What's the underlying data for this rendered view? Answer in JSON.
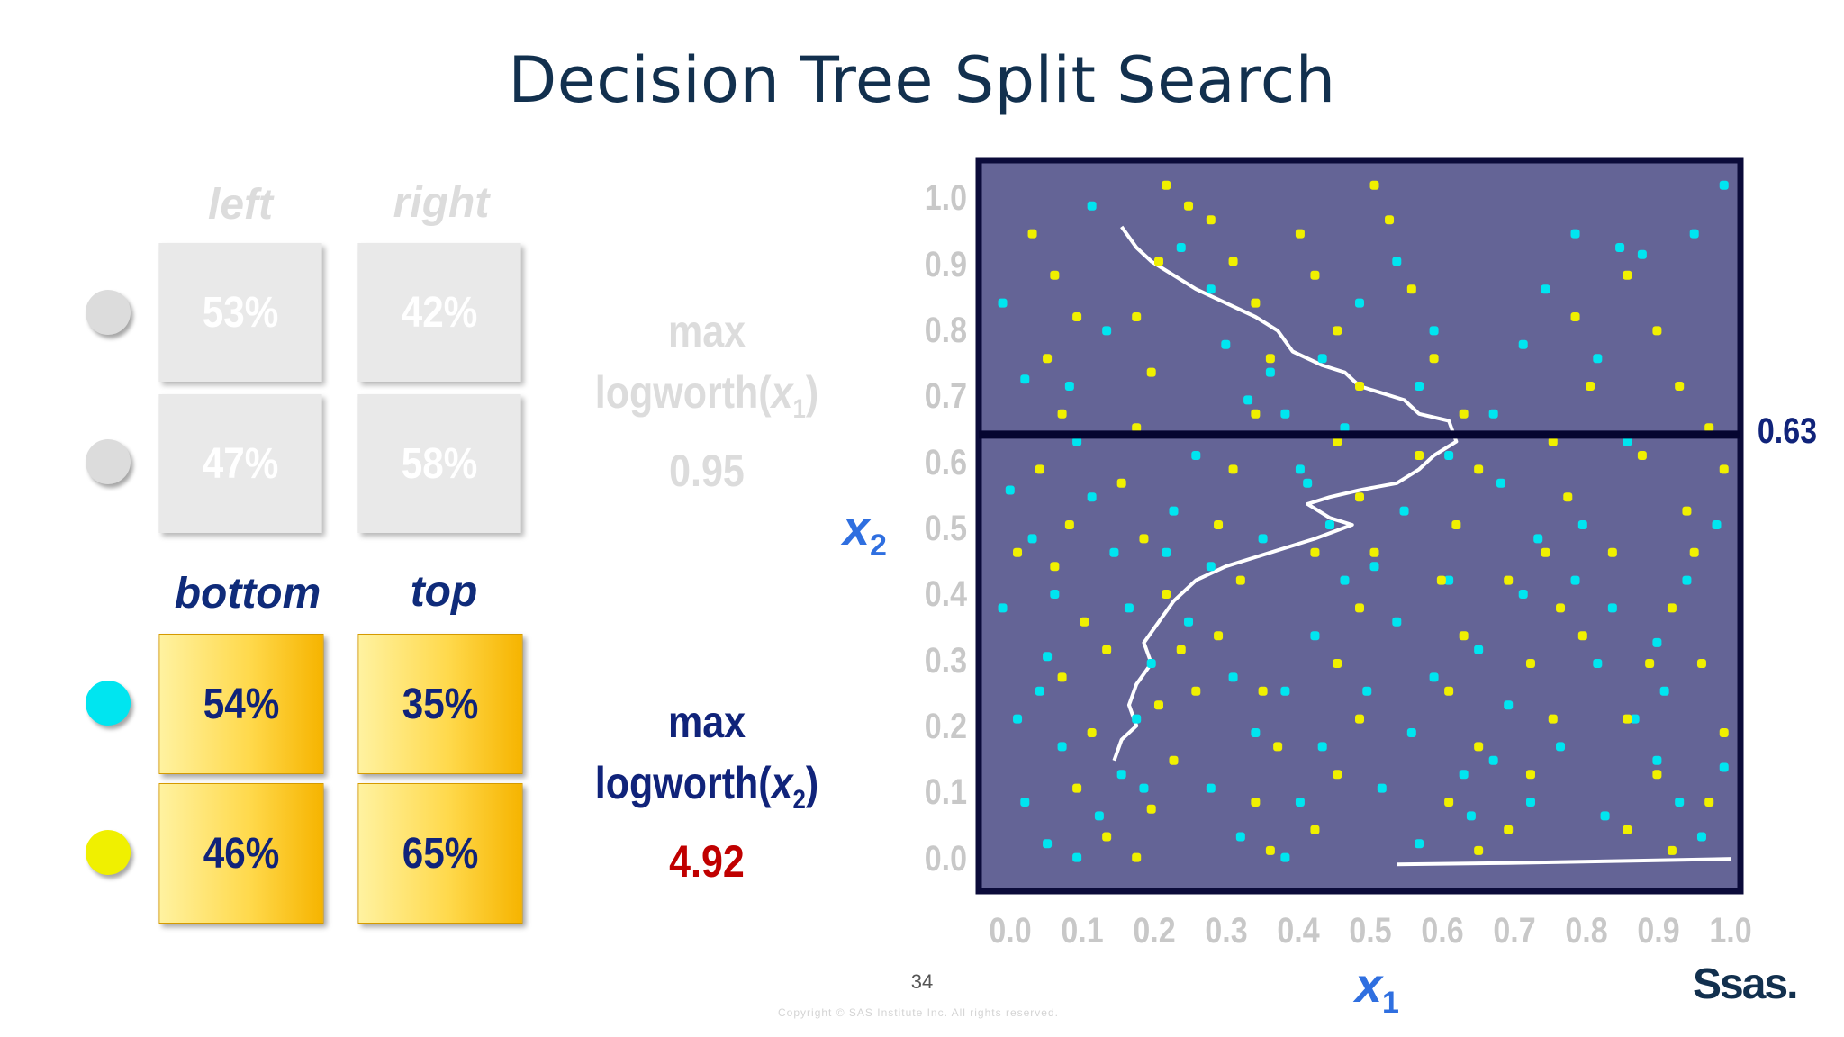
{
  "title": "Decision Tree Split Search",
  "inactive_table": {
    "headers": [
      "left",
      "right"
    ],
    "rows": [
      {
        "left": "53%",
        "right": "42%"
      },
      {
        "left": "47%",
        "right": "58%"
      }
    ]
  },
  "active_table": {
    "headers": [
      "bottom",
      "top"
    ],
    "rows": [
      {
        "left": "54%",
        "right": "35%"
      },
      {
        "left": "46%",
        "right": "65%"
      }
    ]
  },
  "class_colors": {
    "class_1": "#00e5f0",
    "class_2": "#f0f000"
  },
  "stats": {
    "x1": {
      "line1": "max",
      "line2_prefix": "logworth(",
      "var": "x",
      "sub": "1",
      "line2_suffix": ")",
      "value": "0.95"
    },
    "x2": {
      "line1": "max",
      "line2_prefix": "logworth(",
      "var": "x",
      "sub": "2",
      "line2_suffix": ")",
      "value": "4.92"
    }
  },
  "chart_data": {
    "type": "scatter",
    "title": "",
    "xlabel_var": "x",
    "xlabel_sub": "1",
    "ylabel_var": "x",
    "ylabel_sub": "2",
    "x_ticks": [
      "0.0",
      "0.1",
      "0.2",
      "0.3",
      "0.4",
      "0.5",
      "0.6",
      "0.7",
      "0.8",
      "0.9",
      "1.0"
    ],
    "y_ticks": [
      "1.0",
      "0.9",
      "0.8",
      "0.7",
      "0.6",
      "0.5",
      "0.4",
      "0.3",
      "0.2",
      "0.1",
      "0.0"
    ],
    "xlim": [
      0,
      1
    ],
    "ylim": [
      0,
      1
    ],
    "background": "#646496",
    "split": {
      "axis": "x2",
      "value": 0.63,
      "label": "0.63"
    },
    "series": [
      {
        "color": "#00e5f0",
        "points": [
          [
            0.02,
            0.82
          ],
          [
            0.05,
            0.71
          ],
          [
            0.03,
            0.55
          ],
          [
            0.06,
            0.48
          ],
          [
            0.02,
            0.38
          ],
          [
            0.08,
            0.31
          ],
          [
            0.04,
            0.22
          ],
          [
            0.1,
            0.18
          ],
          [
            0.05,
            0.1
          ],
          [
            0.08,
            0.04
          ],
          [
            0.12,
            0.02
          ],
          [
            0.15,
            0.08
          ],
          [
            0.18,
            0.14
          ],
          [
            0.2,
            0.22
          ],
          [
            0.22,
            0.3
          ],
          [
            0.19,
            0.38
          ],
          [
            0.17,
            0.46
          ],
          [
            0.14,
            0.54
          ],
          [
            0.12,
            0.62
          ],
          [
            0.11,
            0.7
          ],
          [
            0.16,
            0.78
          ],
          [
            0.14,
            0.96
          ],
          [
            0.26,
            0.9
          ],
          [
            0.3,
            0.84
          ],
          [
            0.32,
            0.76
          ],
          [
            0.35,
            0.68
          ],
          [
            0.28,
            0.6
          ],
          [
            0.25,
            0.52
          ],
          [
            0.3,
            0.44
          ],
          [
            0.27,
            0.36
          ],
          [
            0.33,
            0.28
          ],
          [
            0.36,
            0.2
          ],
          [
            0.3,
            0.12
          ],
          [
            0.34,
            0.05
          ],
          [
            0.4,
            0.02
          ],
          [
            0.42,
            0.1
          ],
          [
            0.45,
            0.18
          ],
          [
            0.4,
            0.26
          ],
          [
            0.44,
            0.34
          ],
          [
            0.48,
            0.42
          ],
          [
            0.46,
            0.5
          ],
          [
            0.42,
            0.58
          ],
          [
            0.4,
            0.66
          ],
          [
            0.45,
            0.74
          ],
          [
            0.5,
            0.82
          ],
          [
            0.55,
            0.88
          ],
          [
            0.6,
            0.78
          ],
          [
            0.58,
            0.7
          ],
          [
            0.62,
            0.6
          ],
          [
            0.56,
            0.52
          ],
          [
            0.52,
            0.44
          ],
          [
            0.55,
            0.36
          ],
          [
            0.6,
            0.28
          ],
          [
            0.57,
            0.2
          ],
          [
            0.53,
            0.12
          ],
          [
            0.58,
            0.04
          ],
          [
            0.65,
            0.08
          ],
          [
            0.68,
            0.16
          ],
          [
            0.7,
            0.24
          ],
          [
            0.66,
            0.32
          ],
          [
            0.72,
            0.4
          ],
          [
            0.74,
            0.48
          ],
          [
            0.69,
            0.56
          ],
          [
            0.68,
            0.66
          ],
          [
            0.72,
            0.76
          ],
          [
            0.75,
            0.84
          ],
          [
            0.79,
            0.92
          ],
          [
            0.85,
            0.9
          ],
          [
            0.88,
            0.89
          ],
          [
            0.95,
            0.92
          ],
          [
            0.99,
            0.99
          ],
          [
            0.82,
            0.74
          ],
          [
            0.86,
            0.62
          ],
          [
            0.8,
            0.5
          ],
          [
            0.84,
            0.38
          ],
          [
            0.82,
            0.3
          ],
          [
            0.87,
            0.22
          ],
          [
            0.9,
            0.16
          ],
          [
            0.83,
            0.08
          ],
          [
            0.93,
            0.1
          ],
          [
            0.96,
            0.05
          ],
          [
            0.99,
            0.15
          ],
          [
            0.98,
            0.5
          ],
          [
            0.94,
            0.42
          ],
          [
            0.9,
            0.33
          ],
          [
            0.77,
            0.18
          ],
          [
            0.73,
            0.1
          ],
          [
            0.62,
            0.42
          ],
          [
            0.48,
            0.64
          ],
          [
            0.38,
            0.72
          ],
          [
            0.24,
            0.46
          ],
          [
            0.09,
            0.4
          ],
          [
            0.07,
            0.26
          ],
          [
            0.21,
            0.12
          ],
          [
            0.37,
            0.48
          ],
          [
            0.43,
            0.56
          ],
          [
            0.51,
            0.26
          ],
          [
            0.64,
            0.14
          ],
          [
            0.79,
            0.42
          ],
          [
            0.91,
            0.26
          ]
        ]
      },
      {
        "color": "#f0f000",
        "points": [
          [
            0.06,
            0.92
          ],
          [
            0.09,
            0.86
          ],
          [
            0.12,
            0.8
          ],
          [
            0.08,
            0.74
          ],
          [
            0.1,
            0.66
          ],
          [
            0.07,
            0.58
          ],
          [
            0.11,
            0.5
          ],
          [
            0.09,
            0.44
          ],
          [
            0.13,
            0.36
          ],
          [
            0.1,
            0.28
          ],
          [
            0.14,
            0.2
          ],
          [
            0.12,
            0.12
          ],
          [
            0.16,
            0.05
          ],
          [
            0.2,
            0.02
          ],
          [
            0.22,
            0.09
          ],
          [
            0.25,
            0.16
          ],
          [
            0.23,
            0.24
          ],
          [
            0.26,
            0.32
          ],
          [
            0.24,
            0.4
          ],
          [
            0.21,
            0.48
          ],
          [
            0.18,
            0.56
          ],
          [
            0.2,
            0.64
          ],
          [
            0.22,
            0.72
          ],
          [
            0.2,
            0.8
          ],
          [
            0.23,
            0.88
          ],
          [
            0.24,
            0.99
          ],
          [
            0.27,
            0.96
          ],
          [
            0.3,
            0.94
          ],
          [
            0.33,
            0.88
          ],
          [
            0.36,
            0.82
          ],
          [
            0.38,
            0.74
          ],
          [
            0.36,
            0.66
          ],
          [
            0.33,
            0.58
          ],
          [
            0.31,
            0.5
          ],
          [
            0.34,
            0.42
          ],
          [
            0.31,
            0.34
          ],
          [
            0.37,
            0.26
          ],
          [
            0.39,
            0.18
          ],
          [
            0.36,
            0.1
          ],
          [
            0.38,
            0.03
          ],
          [
            0.44,
            0.06
          ],
          [
            0.47,
            0.14
          ],
          [
            0.5,
            0.22
          ],
          [
            0.47,
            0.3
          ],
          [
            0.5,
            0.38
          ],
          [
            0.52,
            0.46
          ],
          [
            0.5,
            0.54
          ],
          [
            0.47,
            0.62
          ],
          [
            0.5,
            0.7
          ],
          [
            0.47,
            0.78
          ],
          [
            0.44,
            0.86
          ],
          [
            0.52,
            0.99
          ],
          [
            0.54,
            0.94
          ],
          [
            0.57,
            0.84
          ],
          [
            0.6,
            0.74
          ],
          [
            0.64,
            0.66
          ],
          [
            0.66,
            0.58
          ],
          [
            0.63,
            0.5
          ],
          [
            0.61,
            0.42
          ],
          [
            0.64,
            0.34
          ],
          [
            0.62,
            0.26
          ],
          [
            0.66,
            0.18
          ],
          [
            0.62,
            0.1
          ],
          [
            0.66,
            0.03
          ],
          [
            0.7,
            0.06
          ],
          [
            0.73,
            0.14
          ],
          [
            0.76,
            0.22
          ],
          [
            0.73,
            0.3
          ],
          [
            0.77,
            0.38
          ],
          [
            0.75,
            0.46
          ],
          [
            0.78,
            0.54
          ],
          [
            0.76,
            0.62
          ],
          [
            0.81,
            0.7
          ],
          [
            0.79,
            0.8
          ],
          [
            0.86,
            0.86
          ],
          [
            0.9,
            0.78
          ],
          [
            0.93,
            0.7
          ],
          [
            0.97,
            0.64
          ],
          [
            0.99,
            0.58
          ],
          [
            0.95,
            0.46
          ],
          [
            0.92,
            0.38
          ],
          [
            0.89,
            0.3
          ],
          [
            0.86,
            0.22
          ],
          [
            0.9,
            0.14
          ],
          [
            0.86,
            0.06
          ],
          [
            0.92,
            0.03
          ],
          [
            0.97,
            0.1
          ],
          [
            0.99,
            0.2
          ],
          [
            0.96,
            0.3
          ],
          [
            0.94,
            0.52
          ],
          [
            0.88,
            0.6
          ],
          [
            0.84,
            0.46
          ],
          [
            0.8,
            0.34
          ],
          [
            0.7,
            0.42
          ],
          [
            0.58,
            0.6
          ],
          [
            0.44,
            0.46
          ],
          [
            0.28,
            0.26
          ],
          [
            0.16,
            0.32
          ],
          [
            0.04,
            0.46
          ],
          [
            0.42,
            0.92
          ]
        ]
      }
    ],
    "curves": [
      {
        "color": "#ffffff",
        "points": [
          [
            0.18,
            0.93
          ],
          [
            0.2,
            0.9
          ],
          [
            0.22,
            0.88
          ],
          [
            0.25,
            0.86
          ],
          [
            0.28,
            0.84
          ],
          [
            0.32,
            0.82
          ],
          [
            0.36,
            0.8
          ],
          [
            0.39,
            0.78
          ],
          [
            0.41,
            0.75
          ],
          [
            0.45,
            0.73
          ],
          [
            0.48,
            0.72
          ],
          [
            0.5,
            0.7
          ],
          [
            0.53,
            0.69
          ],
          [
            0.56,
            0.68
          ],
          [
            0.58,
            0.66
          ],
          [
            0.62,
            0.65
          ],
          [
            0.63,
            0.62
          ],
          [
            0.6,
            0.6
          ],
          [
            0.58,
            0.58
          ],
          [
            0.55,
            0.56
          ],
          [
            0.5,
            0.55
          ],
          [
            0.46,
            0.54
          ],
          [
            0.43,
            0.53
          ],
          [
            0.46,
            0.51
          ],
          [
            0.49,
            0.5
          ],
          [
            0.44,
            0.48
          ],
          [
            0.38,
            0.46
          ],
          [
            0.32,
            0.44
          ],
          [
            0.28,
            0.42
          ],
          [
            0.25,
            0.39
          ],
          [
            0.23,
            0.36
          ],
          [
            0.21,
            0.33
          ],
          [
            0.22,
            0.3
          ],
          [
            0.2,
            0.27
          ],
          [
            0.19,
            0.24
          ],
          [
            0.2,
            0.21
          ],
          [
            0.18,
            0.19
          ],
          [
            0.17,
            0.16
          ]
        ]
      },
      {
        "color": "#ffffff",
        "points": [
          [
            0.55,
            0.01
          ],
          [
            0.7,
            0.012
          ],
          [
            0.85,
            0.015
          ],
          [
            1.0,
            0.018
          ]
        ]
      }
    ]
  },
  "page_number": "34",
  "copyright": "Copyright © SAS Institute Inc. All rights reserved.",
  "logo_text": "Ssas."
}
